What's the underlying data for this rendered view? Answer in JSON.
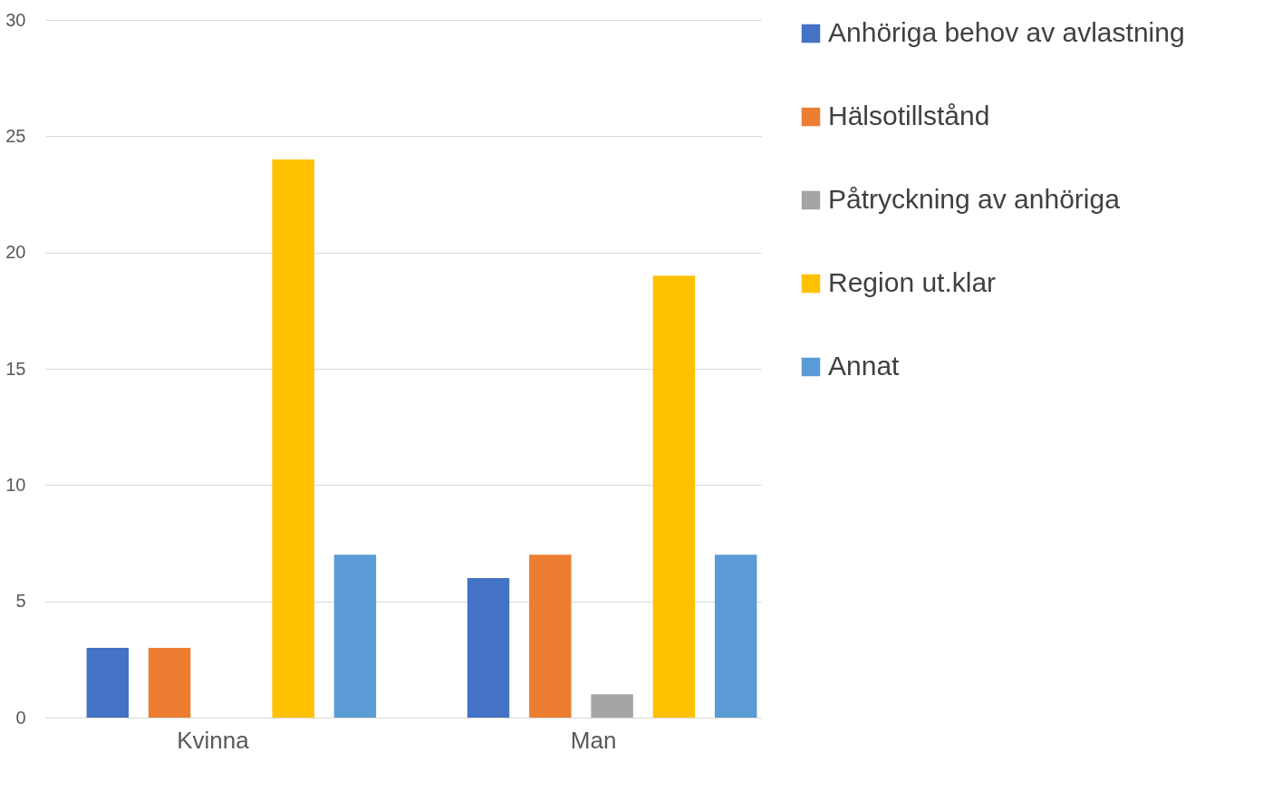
{
  "chart_data": {
    "type": "bar",
    "categories": [
      "Kvinna",
      "Man"
    ],
    "series": [
      {
        "name": "Anhöriga behov av avlastning",
        "color": "#4472c4",
        "values": [
          3,
          6
        ]
      },
      {
        "name": "Hälsotillstånd",
        "color": "#ed7d31",
        "values": [
          3,
          7
        ]
      },
      {
        "name": "Påtryckning av anhöriga",
        "color": "#a5a5a5",
        "values": [
          0,
          1
        ]
      },
      {
        "name": "Region ut.klar",
        "color": "#ffc000",
        "values": [
          24,
          19
        ]
      },
      {
        "name": "Annat",
        "color": "#5b9bd5",
        "values": [
          7,
          7
        ]
      }
    ],
    "ylim": [
      0,
      30
    ],
    "yticks": [
      0,
      5,
      10,
      15,
      20,
      25,
      30
    ],
    "grid": "y",
    "legend": "right"
  }
}
